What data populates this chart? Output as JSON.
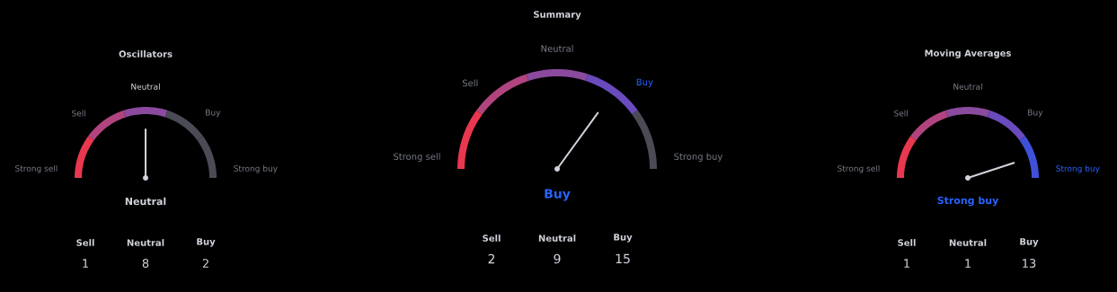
{
  "chart_data": [
    {
      "type": "donut",
      "title": "Oscillators",
      "categories": [
        "Strong sell",
        "Sell",
        "Neutral",
        "Buy",
        "Strong buy"
      ],
      "values": [
        20,
        20,
        20,
        20,
        20
      ],
      "colors": [
        "#e8384f",
        "#b0447f",
        "#8a4a9e",
        "#4a4b55",
        "#4a4b55"
      ],
      "needle": "Neutral"
    },
    {
      "type": "other",
      "categories": [
        "Sell",
        "Neutral",
        "Buy"
      ],
      "values": [
        1,
        8,
        2
      ],
      "data_labels": true
    },
    {
      "type": "donut",
      "title": "Summary",
      "categories": [
        "Strong sell",
        "Sell",
        "Neutral",
        "Buy",
        "Strong buy"
      ],
      "values": [
        20,
        20,
        20,
        20,
        20
      ],
      "colors": [
        "#e8384f",
        "#b0447f",
        "#8a4a9e",
        "#6a4bbd",
        "#4a4b55"
      ],
      "needle": "Buy"
    },
    {
      "type": "other",
      "categories": [
        "Sell",
        "Neutral",
        "Buy"
      ],
      "values": [
        2,
        9,
        15
      ],
      "data_labels": true
    },
    {
      "type": "donut",
      "title": "Moving Averages",
      "categories": [
        "Strong sell",
        "Sell",
        "Neutral",
        "Buy",
        "Strong buy"
      ],
      "values": [
        20,
        20,
        20,
        20,
        20
      ],
      "colors": [
        "#e8384f",
        "#b0447f",
        "#8a4a9e",
        "#6a4bbd",
        "#3f51d8"
      ],
      "needle": "Strong buy"
    },
    {
      "type": "other",
      "categories": [
        "Sell",
        "Neutral",
        "Buy"
      ],
      "values": [
        1,
        1,
        13
      ],
      "data_labels": true
    }
  ]
}
